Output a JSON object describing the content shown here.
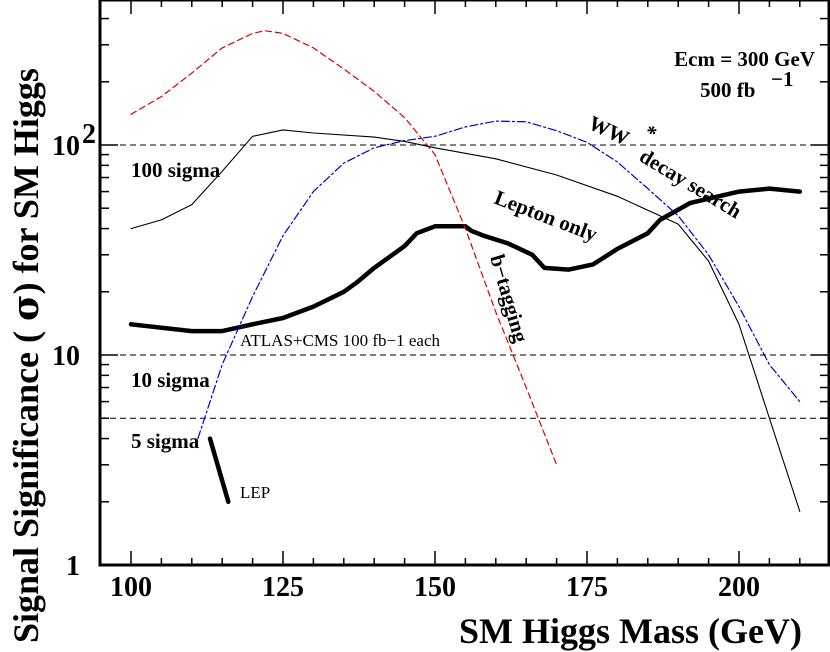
{
  "chart_data": {
    "type": "line",
    "xlabel": "SM Higgs Mass (GeV)",
    "ylabel_parts": [
      "Signal Significance (",
      "σ",
      ") for SM Higgs"
    ],
    "xlim": [
      95,
      212
    ],
    "ylim": [
      1,
      400
    ],
    "yscale": "log",
    "xticks": [
      100,
      125,
      150,
      175,
      200
    ],
    "yticks": [
      {
        "value": 1,
        "label": "1",
        "sup": ""
      },
      {
        "value": 10,
        "label": "10",
        "sup": ""
      },
      {
        "value": 100,
        "label": "10",
        "sup": "2"
      }
    ],
    "grid": false,
    "reference_lines": [
      {
        "value": 100,
        "label": "100 sigma"
      },
      {
        "value": 10,
        "label": "10 sigma"
      },
      {
        "value": 5,
        "label": "5 sigma"
      }
    ],
    "series": [
      {
        "name": "Lepton only",
        "color": "#000000",
        "style": "thick",
        "x": [
          100,
          110,
          115,
          120,
          125,
          130,
          135,
          137,
          140,
          145,
          147,
          150,
          155,
          156,
          158,
          162,
          166,
          168,
          172,
          176,
          180,
          185,
          187,
          192,
          200,
          205,
          210
        ],
        "y": [
          14,
          13,
          13,
          14,
          15,
          17,
          20,
          22,
          26,
          33,
          38,
          41,
          41,
          39,
          37,
          34,
          30,
          26,
          25.5,
          27,
          32,
          38,
          44,
          53,
          60,
          62,
          60
        ]
      },
      {
        "name": "WW* decay search",
        "color": "#0000cc",
        "style": "dashdot",
        "x": [
          111,
          115,
          120,
          125,
          130,
          135,
          140,
          145,
          150,
          155,
          160,
          165,
          170,
          175,
          180,
          185,
          190,
          195,
          200,
          205,
          210
        ],
        "y": [
          4,
          9,
          19,
          37,
          60,
          82,
          97,
          105,
          110,
          122,
          130,
          129,
          117,
          103,
          83,
          62,
          46,
          30,
          17,
          9,
          6
        ]
      },
      {
        "name": "b-tagging",
        "color": "#dd0000",
        "style": "dashed",
        "x": [
          100,
          105,
          110,
          115,
          120,
          122,
          125,
          130,
          135,
          140,
          145,
          150,
          155,
          160,
          165,
          170
        ],
        "y": [
          140,
          170,
          220,
          290,
          340,
          350,
          340,
          290,
          230,
          180,
          135,
          90,
          40,
          16,
          7,
          3
        ]
      },
      {
        "name": "ATLAS+CMS 100 fb−1 each",
        "color": "#000000",
        "style": "thin",
        "x": [
          100,
          105,
          110,
          115,
          120,
          125,
          130,
          140,
          145,
          150,
          160,
          170,
          180,
          190,
          195,
          200,
          205,
          210
        ],
        "y": [
          40,
          44,
          52,
          75,
          110,
          118,
          114,
          109,
          104,
          97,
          86,
          72,
          57,
          42,
          28,
          14,
          5,
          1.8
        ]
      },
      {
        "name": "LEP",
        "color": "#000000",
        "style": "thick",
        "x": [
          113,
          116
        ],
        "y": [
          4,
          2
        ]
      }
    ],
    "annotations": {
      "ecm_line1": "Ecm = 300 GeV",
      "ecm_line2": "500 fb",
      "ecm_sup": "−1",
      "ww": "WW",
      "ww_star": "*",
      "decay_search": "decay search",
      "lepton_only": "Lepton only",
      "btag": "b−tagging",
      "atlas": "ATLAS+CMS 100 fb−1 each",
      "lep": "LEP"
    }
  }
}
